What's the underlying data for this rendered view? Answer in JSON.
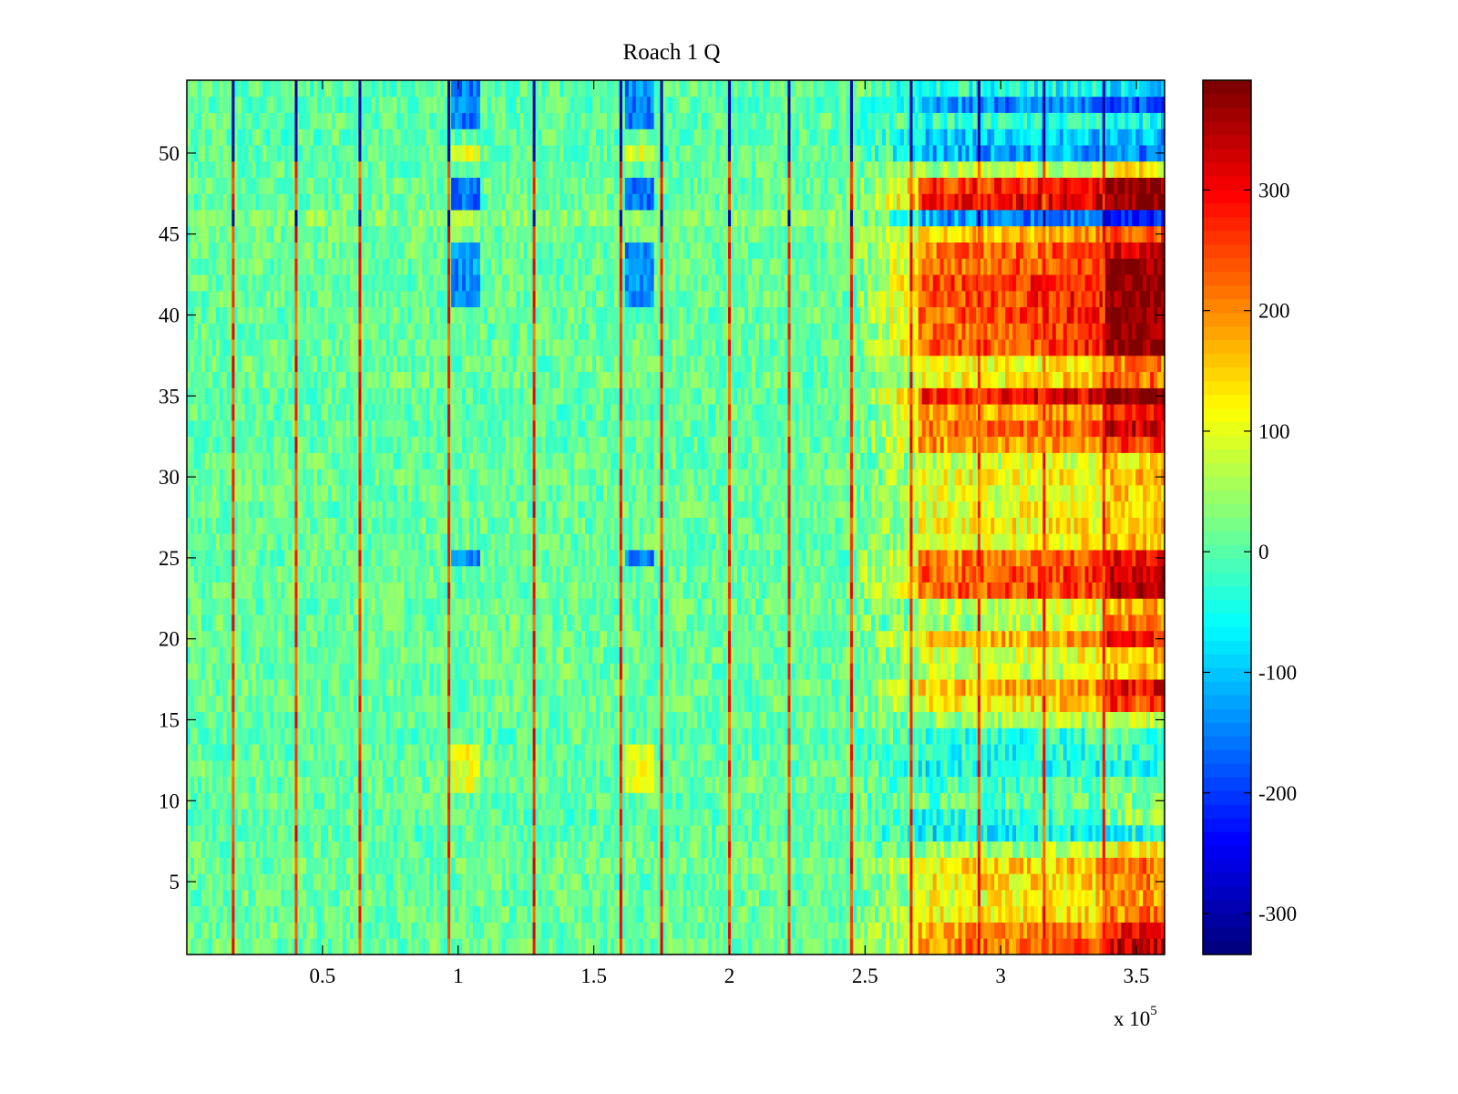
{
  "chart_data": {
    "type": "heatmap",
    "title": "Roach 1 Q",
    "xlabel": "",
    "ylabel": "",
    "x_multiplier_label": "x 10",
    "x_multiplier_exponent": "5",
    "xlim": [
      0,
      360400
    ],
    "ylim": [
      0.5,
      54.5
    ],
    "rows": 54,
    "clim": [
      -334,
      391
    ],
    "colormap": "jet",
    "colormap_levels": 64,
    "x_ticks": [
      {
        "value": 50000,
        "label": "0.5"
      },
      {
        "value": 100000,
        "label": "1"
      },
      {
        "value": 150000,
        "label": "1.5"
      },
      {
        "value": 200000,
        "label": "2"
      },
      {
        "value": 250000,
        "label": "2.5"
      },
      {
        "value": 300000,
        "label": "3"
      },
      {
        "value": 350000,
        "label": "3.5"
      }
    ],
    "y_ticks": [
      {
        "value": 5,
        "label": "5"
      },
      {
        "value": 10,
        "label": "10"
      },
      {
        "value": 15,
        "label": "15"
      },
      {
        "value": 20,
        "label": "20"
      },
      {
        "value": 25,
        "label": "25"
      },
      {
        "value": 30,
        "label": "30"
      },
      {
        "value": 35,
        "label": "35"
      },
      {
        "value": 40,
        "label": "40"
      },
      {
        "value": 45,
        "label": "45"
      },
      {
        "value": 50,
        "label": "50"
      }
    ],
    "colorbar_ticks": [
      {
        "value": -300,
        "label": "-300"
      },
      {
        "value": -200,
        "label": "-200"
      },
      {
        "value": -100,
        "label": "-100"
      },
      {
        "value": 0,
        "label": "0"
      },
      {
        "value": 100,
        "label": "100"
      },
      {
        "value": 200,
        "label": "200"
      },
      {
        "value": 300,
        "label": "300"
      }
    ],
    "region_bounds_x": {
      "left_end": 245000,
      "ramp_end": 270000,
      "far_right_start": 338000
    },
    "row_mean_left": [
      10,
      10,
      10,
      10,
      10,
      15,
      10,
      0,
      0,
      5,
      10,
      10,
      5,
      0,
      5,
      10,
      10,
      10,
      10,
      10,
      10,
      10,
      10,
      10,
      5,
      10,
      10,
      10,
      10,
      10,
      10,
      5,
      5,
      5,
      5,
      10,
      10,
      10,
      10,
      10,
      10,
      10,
      10,
      10,
      15,
      35,
      10,
      10,
      5,
      5,
      0,
      5,
      0,
      5
    ],
    "row_mean_right": [
      200,
      170,
      110,
      100,
      120,
      130,
      40,
      -60,
      -40,
      0,
      -20,
      -50,
      -40,
      -30,
      40,
      110,
      150,
      60,
      80,
      150,
      40,
      60,
      230,
      220,
      200,
      100,
      110,
      100,
      90,
      100,
      70,
      180,
      200,
      170,
      280,
      110,
      100,
      220,
      210,
      220,
      230,
      240,
      200,
      200,
      150,
      -120,
      280,
      250,
      60,
      -110,
      -90,
      -30,
      -130,
      -40
    ],
    "row_mean_far_right": [
      330,
      290,
      210,
      190,
      200,
      220,
      120,
      -40,
      30,
      30,
      20,
      -60,
      -20,
      -10,
      80,
      250,
      300,
      150,
      170,
      280,
      200,
      170,
      330,
      350,
      300,
      160,
      160,
      150,
      150,
      170,
      140,
      260,
      330,
      280,
      390,
      220,
      200,
      390,
      380,
      390,
      390,
      390,
      390,
      330,
      250,
      -220,
      390,
      390,
      130,
      -150,
      -120,
      -60,
      -180,
      -80
    ],
    "noise_amplitude": 45,
    "artifact_columns": [
      17100,
      40300,
      63800,
      96600,
      128000,
      160000,
      175000,
      200000,
      222000,
      245000,
      267000,
      292000,
      316000,
      338000
    ],
    "artifact_value_default": 260,
    "artifact_value_negative_rows": [
      46,
      50,
      51,
      52,
      53,
      54
    ],
    "artifact_value_negative": -310,
    "blobs": [
      {
        "x_range": [
          98000,
          108000
        ],
        "rows": [
          47,
          48
        ],
        "value": -160
      },
      {
        "x_range": [
          98000,
          108000
        ],
        "rows": [
          52,
          54
        ],
        "value": -150
      },
      {
        "x_range": [
          98000,
          108000
        ],
        "rows": [
          41,
          44
        ],
        "value": -140
      },
      {
        "x_range": [
          98000,
          108000
        ],
        "rows": [
          25,
          25
        ],
        "value": -160
      },
      {
        "x_range": [
          98000,
          108000
        ],
        "rows": [
          11,
          13
        ],
        "value": 100
      },
      {
        "x_range": [
          98000,
          108000
        ],
        "rows": [
          50,
          50
        ],
        "value": 100
      },
      {
        "x_range": [
          162000,
          172000
        ],
        "rows": [
          47,
          48
        ],
        "value": -160
      },
      {
        "x_range": [
          162000,
          172000
        ],
        "rows": [
          52,
          54
        ],
        "value": -150
      },
      {
        "x_range": [
          162000,
          172000
        ],
        "rows": [
          41,
          44
        ],
        "value": -140
      },
      {
        "x_range": [
          162000,
          172000
        ],
        "rows": [
          25,
          25
        ],
        "value": -160
      },
      {
        "x_range": [
          162000,
          172000
        ],
        "rows": [
          11,
          13
        ],
        "value": 100
      },
      {
        "x_range": [
          162000,
          172000
        ],
        "rows": [
          50,
          50
        ],
        "value": 100
      }
    ]
  }
}
